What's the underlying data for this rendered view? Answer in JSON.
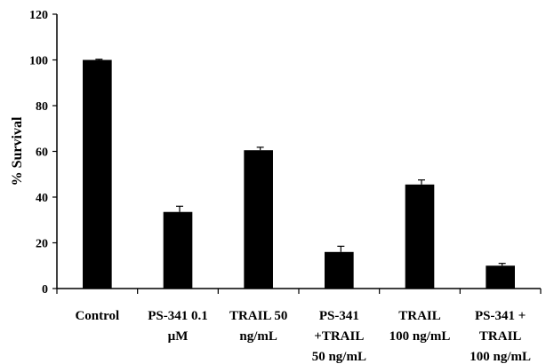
{
  "chart_data": {
    "type": "bar",
    "ylabel": "% Survival",
    "xlabel": "",
    "title": "",
    "ylim": [
      0,
      120
    ],
    "yticks": [
      0,
      20,
      40,
      60,
      80,
      100,
      120
    ],
    "grid": false,
    "legend": "none",
    "bar_color": "#000000",
    "categories": [
      [
        "Control"
      ],
      [
        "PS-341 0.1",
        "µM"
      ],
      [
        "TRAIL 50",
        "ng/mL"
      ],
      [
        "PS-341",
        "+TRAIL",
        "50 ng/mL"
      ],
      [
        "TRAIL",
        "100 ng/mL"
      ],
      [
        "PS-341 +",
        "TRAIL",
        "100 ng/mL"
      ]
    ],
    "values": [
      100,
      33.5,
      60.5,
      16,
      45.5,
      10
    ],
    "errors": [
      0.3,
      2.5,
      1.3,
      2.5,
      2.0,
      1.0
    ]
  }
}
